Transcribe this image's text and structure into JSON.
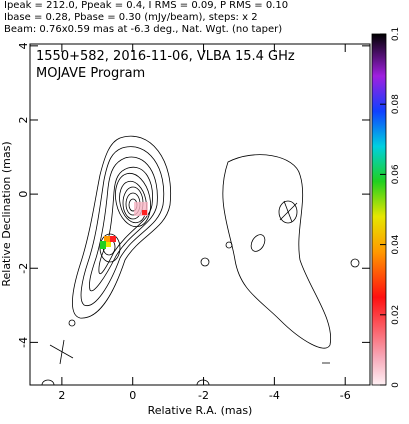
{
  "chart_data": {
    "type": "contour",
    "header": [
      "Ipeak = 212.0, Ppeak = 0.4, I RMS = 0.09, P RMS = 0.10",
      "Ibase = 0.28, Pbase = 0.30 (mJy/beam), steps: x 2",
      "Beam: 0.76x0.59 mas at -6.3 deg., Nat. Wgt. (no taper)"
    ],
    "title": "1550+582, 2016-11-06, VLBA 15.4 GHz",
    "subtitle": "MOJAVE Program",
    "x_label": "Relative R.A. (mas)",
    "y_label": "Relative Declination (mas)",
    "xlim": [
      2.9,
      -6.7
    ],
    "xticks": [
      2,
      0,
      -2,
      -4,
      -6
    ],
    "ylim": [
      -5.15,
      4.05
    ],
    "yticks": [
      4,
      2,
      0,
      -2,
      -4
    ],
    "clim": [
      0,
      0.1
    ],
    "cticks": [
      0,
      0.02,
      0.04,
      0.06,
      0.08,
      0.1
    ]
  }
}
